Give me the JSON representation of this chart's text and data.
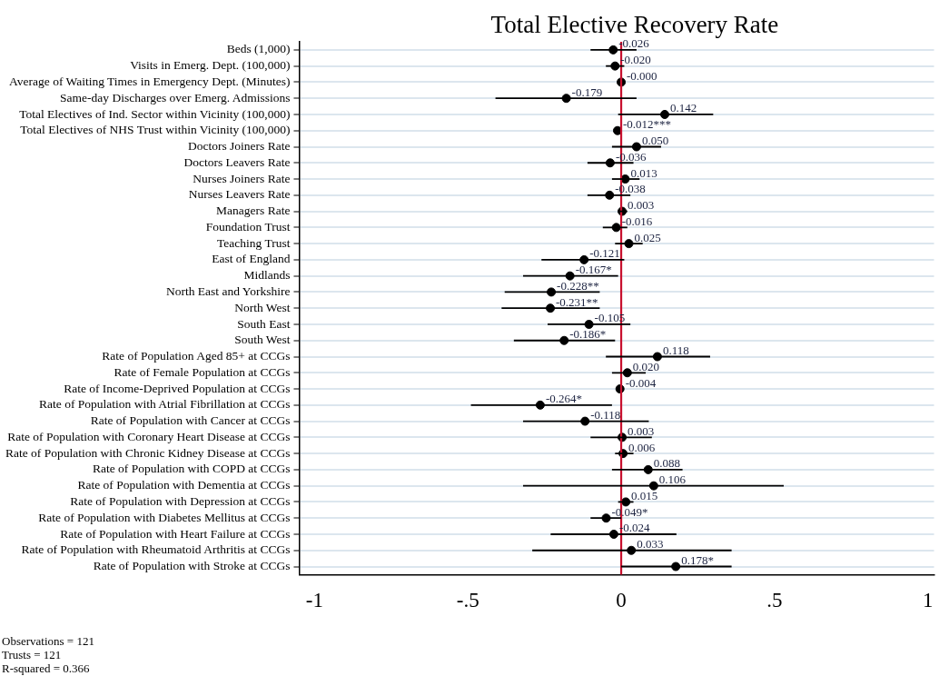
{
  "chart_data": {
    "type": "scatter",
    "orientation": "horizontal",
    "title": "Total Elective Recovery Rate",
    "categories": [
      "Beds (1,000)",
      "Visits in Emerg. Dept. (100,000)",
      "Average of Waiting Times in Emergency Dept. (Minutes)",
      "Same-day Discharges over Emerg. Admissions",
      "Total Electives of Ind. Sector within Vicinity (100,000)",
      "Total Electives of NHS Trust within Vicinity (100,000)",
      "Doctors Joiners Rate",
      "Doctors Leavers Rate",
      "Nurses Joiners Rate",
      "Nurses Leavers Rate",
      "Managers Rate",
      "Foundation Trust",
      "Teaching Trust",
      "East of England",
      "Midlands",
      "North East and Yorkshire",
      "North West",
      "South East",
      "South West",
      "Rate of Population Aged 85+ at CCGs",
      "Rate of Female Population at CCGs",
      "Rate of Income-Deprived Population at CCGs",
      "Rate of Population with Atrial Fibrillation at CCGs",
      "Rate of Population with Cancer at CCGs",
      "Rate of Population with Coronary Heart Disease at CCGs",
      "Rate of Population with Chronic Kidney Disease at CCGs",
      "Rate of Population with COPD at CCGs",
      "Rate of Population with Dementia at CCGs",
      "Rate of Population with Depression at CCGs",
      "Rate of Population with Diabetes Mellitus at CCGs",
      "Rate of Population with Heart Failure at CCGs",
      "Rate of Population with Rheumatoid Arthritis at CCGs",
      "Rate of Population with Stroke at CCGs"
    ],
    "series": [
      {
        "color": "#000000",
        "values": [
          -0.026,
          -0.02,
          -0.0,
          -0.179,
          0.142,
          -0.012,
          0.05,
          -0.036,
          0.013,
          -0.038,
          0.003,
          -0.016,
          0.025,
          -0.121,
          -0.167,
          -0.228,
          -0.231,
          -0.105,
          -0.186,
          0.118,
          0.02,
          -0.004,
          -0.264,
          -0.118,
          0.003,
          0.006,
          0.088,
          0.106,
          0.015,
          -0.049,
          -0.024,
          0.033,
          0.178
        ],
        "errors": [
          [
            -0.1,
            0.05
          ],
          [
            -0.05,
            0.01
          ],
          null,
          [
            -0.41,
            0.05
          ],
          [
            -0.01,
            0.3
          ],
          null,
          [
            -0.03,
            0.13
          ],
          [
            -0.11,
            0.04
          ],
          [
            -0.03,
            0.06
          ],
          [
            -0.11,
            0.03
          ],
          [
            -0.01,
            0.02
          ],
          [
            -0.06,
            0.02
          ],
          [
            -0.02,
            0.07
          ],
          [
            -0.26,
            0.01
          ],
          [
            -0.32,
            -0.01
          ],
          [
            -0.38,
            -0.07
          ],
          [
            -0.39,
            -0.07
          ],
          [
            -0.24,
            0.03
          ],
          [
            -0.35,
            -0.02
          ],
          [
            -0.05,
            0.29
          ],
          [
            -0.03,
            0.08
          ],
          null,
          [
            -0.49,
            -0.03
          ],
          [
            -0.32,
            0.09
          ],
          [
            -0.1,
            0.1
          ],
          [
            -0.02,
            0.04
          ],
          [
            -0.03,
            0.2
          ],
          [
            -0.32,
            0.53
          ],
          [
            -0.01,
            0.04
          ],
          [
            -0.1,
            0.0
          ],
          [
            -0.23,
            0.18
          ],
          [
            -0.29,
            0.36
          ],
          [
            0.0,
            0.36
          ]
        ],
        "value_labels": [
          "-0.026",
          "-0.020",
          "-0.000",
          "-0.179",
          "0.142",
          "-0.012***",
          "0.050",
          "-0.036",
          "0.013",
          "-0.038",
          "0.003",
          "-0.016",
          "0.025",
          "-0.121",
          "-0.167*",
          "-0.228**",
          "-0.231**",
          "-0.105",
          "-0.186*",
          "0.118",
          "0.020",
          "-0.004",
          "-0.264*",
          "-0.118",
          "0.003",
          "0.006",
          "0.088",
          "0.106",
          "0.015",
          "-0.049*",
          "-0.024",
          "0.033",
          "0.178*"
        ]
      }
    ],
    "xlim": [
      -1.05,
      1.02
    ],
    "xticks": [
      {
        "value": -1,
        "label": "-1"
      },
      {
        "value": -0.5,
        "label": "-.5"
      },
      0,
      {
        "value": 0.5,
        "label": ".5"
      },
      1
    ],
    "ref_lines": [
      {
        "axis": "x",
        "value": 0,
        "color": "#c8102e"
      }
    ],
    "grid": "y",
    "marker": "circle",
    "legend": false,
    "annotations": [
      "Observations = 121",
      "Trusts = 121",
      "R-squared = 0.366"
    ]
  }
}
